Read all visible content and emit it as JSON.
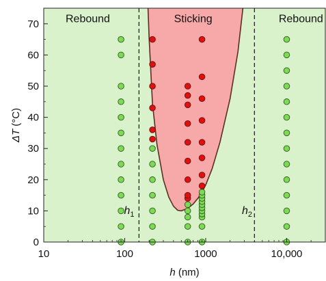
{
  "chart_data": {
    "type": "scatter",
    "x_scale": "log",
    "xlim": [
      10,
      30000
    ],
    "ylim": [
      0,
      75
    ],
    "xlabel": {
      "var": "h",
      "unit": " (nm)"
    },
    "ylabel": {
      "var": "ΔT",
      "unit": " (°C)"
    },
    "x_ticks": [
      {
        "value": 10,
        "label": "10"
      },
      {
        "value": 100,
        "label": "100"
      },
      {
        "value": 1000,
        "label": "1000"
      },
      {
        "value": 10000,
        "label": "10,000"
      }
    ],
    "y_ticks": [
      0,
      10,
      20,
      30,
      40,
      50,
      60,
      70
    ],
    "grid": false,
    "colors": {
      "background": "#d9f2cc",
      "sticking_region": "#f7a8a8",
      "boundary": "#5a2e22",
      "rebound_marker": "#7ed957",
      "sticking_marker": "#e01010",
      "marker_edge": "#2d5a1b"
    },
    "regions": [
      {
        "label": "Rebound",
        "x_text": 35,
        "y_text": 70.5
      },
      {
        "label": "Sticking",
        "x_text": 700,
        "y_text": 70.5
      },
      {
        "label": "Rebound",
        "x_text": 15000,
        "y_text": 70.5
      }
    ],
    "boundary_curve": {
      "x": [
        194,
        200,
        220,
        250,
        300,
        350,
        400,
        450,
        500,
        600,
        700,
        800,
        900,
        1000,
        1200,
        1500,
        2000,
        2500,
        2880
      ],
      "y": [
        75,
        65.5,
        44.5,
        31.3,
        20,
        14.4,
        11.5,
        10.2,
        10,
        10.8,
        12.2,
        14,
        16,
        18.3,
        23.5,
        32,
        46,
        61,
        75
      ]
    },
    "critical_lines": [
      {
        "name": "h",
        "subscript": "1",
        "x": 150,
        "label_x": 98,
        "label_y": 9
      },
      {
        "name": "h",
        "subscript": "2",
        "x": 4000,
        "label_x": 2800,
        "label_y": 9
      }
    ],
    "series": [
      {
        "name": "Rebound",
        "points": [
          [
            90,
            0
          ],
          [
            90,
            5
          ],
          [
            90,
            10
          ],
          [
            90,
            15
          ],
          [
            90,
            20
          ],
          [
            90,
            25
          ],
          [
            90,
            30
          ],
          [
            90,
            35
          ],
          [
            90,
            40
          ],
          [
            90,
            45
          ],
          [
            90,
            50
          ],
          [
            90,
            60
          ],
          [
            90,
            65
          ],
          [
            220,
            0
          ],
          [
            220,
            5
          ],
          [
            220,
            10
          ],
          [
            220,
            15
          ],
          [
            220,
            20
          ],
          [
            220,
            25
          ],
          [
            220,
            30
          ],
          [
            600,
            0
          ],
          [
            600,
            5
          ],
          [
            600,
            8
          ],
          [
            600,
            10
          ],
          [
            600,
            12
          ],
          [
            900,
            0
          ],
          [
            900,
            5
          ],
          [
            900,
            8
          ],
          [
            900,
            9
          ],
          [
            900,
            10
          ],
          [
            900,
            11
          ],
          [
            900,
            12
          ],
          [
            900,
            13
          ],
          [
            900,
            14
          ],
          [
            900,
            15
          ],
          [
            900,
            16
          ],
          [
            10000,
            0
          ],
          [
            10000,
            5
          ],
          [
            10000,
            10
          ],
          [
            10000,
            15
          ],
          [
            10000,
            20
          ],
          [
            10000,
            25
          ],
          [
            10000,
            30
          ],
          [
            10000,
            35
          ],
          [
            10000,
            40
          ],
          [
            10000,
            45
          ],
          [
            10000,
            50
          ],
          [
            10000,
            55
          ],
          [
            10000,
            60
          ],
          [
            10000,
            65
          ]
        ]
      },
      {
        "name": "Sticking",
        "points": [
          [
            220,
            33
          ],
          [
            220,
            36
          ],
          [
            220,
            43
          ],
          [
            220,
            50
          ],
          [
            220,
            57
          ],
          [
            220,
            65
          ],
          [
            600,
            14
          ],
          [
            600,
            15
          ],
          [
            600,
            20
          ],
          [
            600,
            26
          ],
          [
            600,
            32
          ],
          [
            600,
            38
          ],
          [
            600,
            44
          ],
          [
            600,
            47
          ],
          [
            600,
            50
          ],
          [
            900,
            18
          ],
          [
            900,
            21.5
          ],
          [
            900,
            27
          ],
          [
            900,
            32
          ],
          [
            900,
            39
          ],
          [
            900,
            46
          ],
          [
            900,
            53
          ],
          [
            900,
            65
          ]
        ]
      }
    ]
  }
}
